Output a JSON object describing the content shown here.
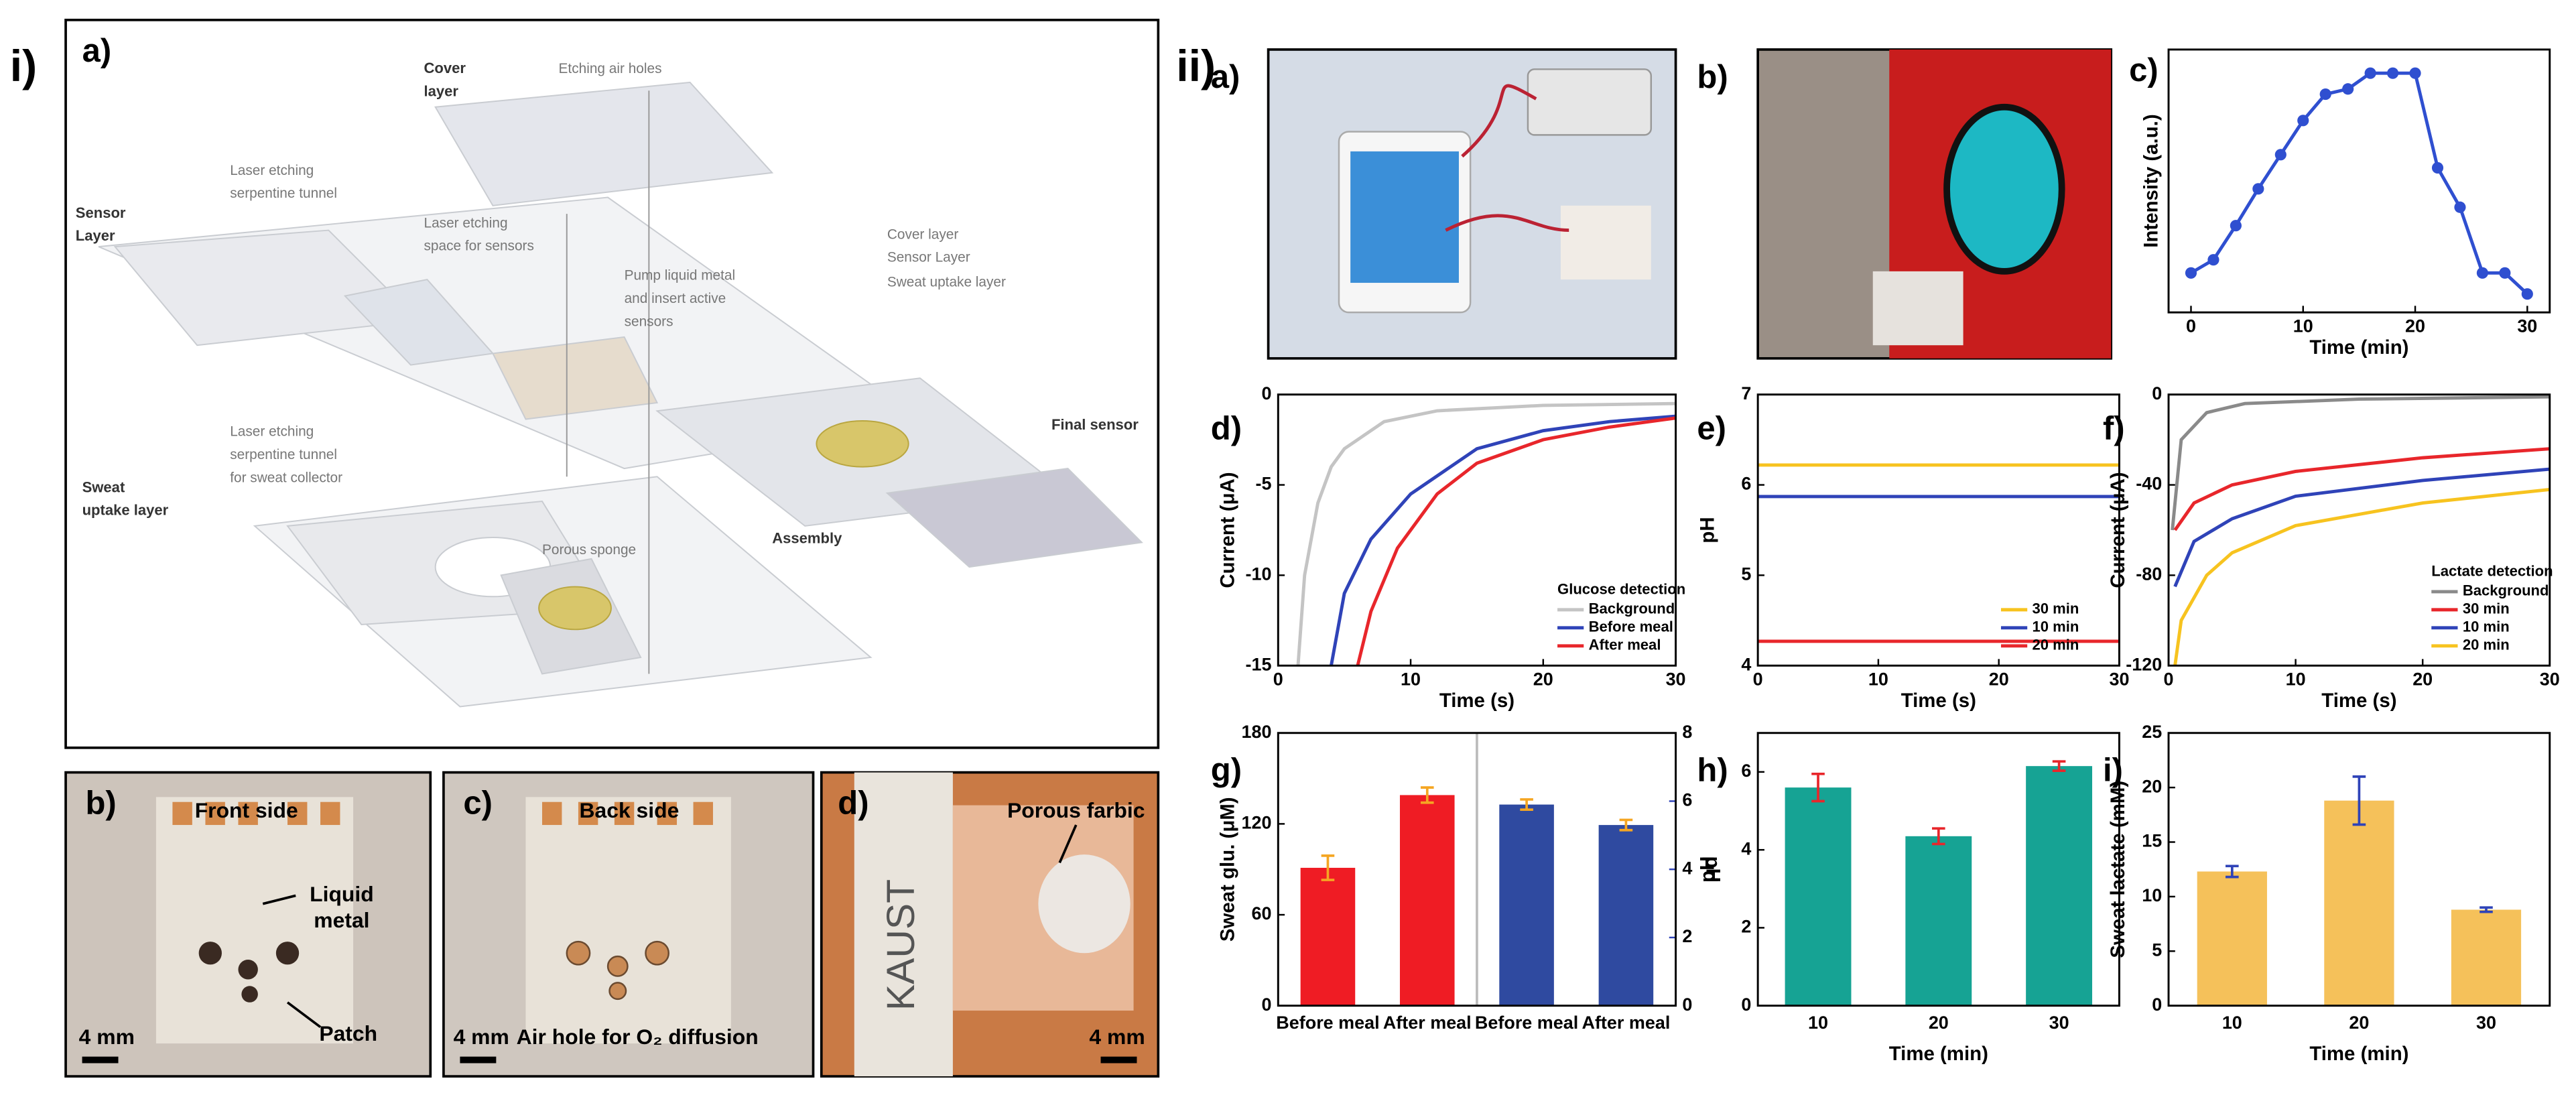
{
  "figure": {
    "label_i": "i)",
    "label_ii": "ii)",
    "panel_a": {
      "label": "a)",
      "annotations": [
        "Cover",
        "layer",
        "Etching air holes",
        "Laser etching",
        "serpentine tunnel",
        "Sensor",
        "Layer",
        "Laser etching",
        "space for sensors",
        "Pump liquid metal",
        "and insert active",
        "sensors",
        "Cover layer",
        "Sensor Layer",
        "Sweat uptake layer",
        "Final sensor",
        "Assembly",
        "Laser etching",
        "serpentine tunnel",
        "for sweat collector",
        "Sweat",
        "uptake layer",
        "Porous sponge"
      ]
    },
    "panel_b": {
      "label": "b)",
      "title": "Front side",
      "notes": [
        "Liquid",
        "metal",
        "Patch"
      ],
      "scale": "4 mm"
    },
    "panel_c": {
      "label": "c)",
      "title": "Back side",
      "notes": [
        "Air hole for O₂ diffusion"
      ],
      "scale": "4 mm"
    },
    "panel_d": {
      "label": "d)",
      "title": "Porous farbic",
      "notes": [
        "KAUST"
      ],
      "scale": "4 mm"
    },
    "panel_ii_a": {
      "label": "a)"
    },
    "panel_ii_b": {
      "label": "b)"
    }
  },
  "chart_data": [
    {
      "type": "line",
      "panel": "c)",
      "x_label": "Time (min)",
      "y_label": "Intensity (a.u.)",
      "xlim": [
        -2,
        32
      ],
      "xticks": [
        0,
        10,
        20,
        30
      ],
      "ylim": [
        -0.05,
        0.95
      ],
      "markers": true,
      "series": [
        {
          "color": "#2f4fd0",
          "x": [
            0,
            2,
            4,
            6,
            8,
            10,
            12,
            14,
            16,
            18,
            20,
            22,
            24,
            26,
            28,
            30
          ],
          "values": [
            0.1,
            0.15,
            0.28,
            0.42,
            0.55,
            0.68,
            0.78,
            0.8,
            0.86,
            0.86,
            0.86,
            0.5,
            0.35,
            0.1,
            0.1,
            0.02
          ]
        }
      ]
    },
    {
      "type": "line",
      "panel": "d)",
      "x_label": "Time (s)",
      "y_label": "Current (μA)",
      "xlim": [
        0,
        30
      ],
      "xticks": [
        0,
        10,
        20,
        30
      ],
      "ylim": [
        -15,
        0
      ],
      "yticks": [
        -15,
        -10,
        -5,
        0
      ],
      "legend_title": "Glucose detection",
      "series": [
        {
          "name": "Background",
          "color": "#c4c4c4",
          "x": [
            1.5,
            2,
            3,
            4,
            5,
            8,
            12,
            20,
            30
          ],
          "values": [
            -15,
            -10,
            -6,
            -4,
            -3,
            -1.5,
            -0.9,
            -0.6,
            -0.5
          ]
        },
        {
          "name": "Before meal",
          "color": "#2f43b8",
          "x": [
            4,
            5,
            7,
            10,
            15,
            20,
            25,
            30
          ],
          "values": [
            -15,
            -11,
            -8,
            -5.5,
            -3,
            -2,
            -1.5,
            -1.2
          ]
        },
        {
          "name": "After meal",
          "color": "#e8262b",
          "x": [
            6,
            7,
            9,
            12,
            15,
            20,
            25,
            30
          ],
          "values": [
            -15,
            -12,
            -8.5,
            -5.5,
            -3.8,
            -2.5,
            -1.8,
            -1.3
          ]
        }
      ]
    },
    {
      "type": "line",
      "panel": "e)",
      "x_label": "Time (s)",
      "y_label": "pH",
      "xlim": [
        0,
        30
      ],
      "xticks": [
        0,
        10,
        20,
        30
      ],
      "ylim": [
        4,
        7
      ],
      "yticks": [
        4,
        5,
        6,
        7
      ],
      "series": [
        {
          "name": "30 min",
          "color": "#f7c31f",
          "x": [
            0,
            30
          ],
          "values": [
            6.22,
            6.22
          ]
        },
        {
          "name": "10 min",
          "color": "#2f43b8",
          "x": [
            0,
            30
          ],
          "values": [
            5.87,
            5.87
          ]
        },
        {
          "name": "20 min",
          "color": "#e8262b",
          "x": [
            0,
            30
          ],
          "values": [
            4.27,
            4.27
          ]
        }
      ]
    },
    {
      "type": "line",
      "panel": "f)",
      "x_label": "Time (s)",
      "y_label": "Current (μA)",
      "xlim": [
        0,
        30
      ],
      "xticks": [
        0,
        10,
        20,
        30
      ],
      "ylim": [
        -120,
        0
      ],
      "yticks": [
        -120,
        -80,
        -40,
        0
      ],
      "legend_title": "Lactate detection",
      "series": [
        {
          "name": "Background",
          "color": "#8a8a8a",
          "x": [
            0.3,
            1,
            3,
            6,
            15,
            30
          ],
          "values": [
            -60,
            -20,
            -8,
            -4,
            -2,
            -1
          ]
        },
        {
          "name": "30 min",
          "color": "#e8262b",
          "x": [
            0.5,
            2,
            5,
            10,
            20,
            30
          ],
          "values": [
            -60,
            -48,
            -40,
            -34,
            -28,
            -24
          ]
        },
        {
          "name": "10 min",
          "color": "#2f43b8",
          "x": [
            0.5,
            2,
            5,
            10,
            20,
            30
          ],
          "values": [
            -85,
            -65,
            -55,
            -45,
            -38,
            -33
          ]
        },
        {
          "name": "20 min",
          "color": "#f7c31f",
          "x": [
            0.5,
            1,
            3,
            5,
            10,
            20,
            30
          ],
          "values": [
            -120,
            -100,
            -80,
            -70,
            -58,
            -48,
            -42
          ]
        }
      ]
    },
    {
      "type": "bar",
      "panel": "g)",
      "y_label": "Sweat glu. (μM)",
      "y2_label": "pH",
      "y_label_color": "#e8262b",
      "y2_label_color": "#2f43b8",
      "categories": [
        "Before meal",
        "After meal",
        "Before meal",
        "After meal"
      ],
      "ylim": [
        0,
        180
      ],
      "yticks": [
        0,
        60,
        120,
        180
      ],
      "y2lim": [
        0,
        8
      ],
      "y2ticks": [
        0,
        2,
        4,
        6,
        8
      ],
      "series": [
        {
          "color": "#ef1c24",
          "error_color": "#f5a623",
          "values": [
            91,
            139,
            null,
            null
          ],
          "errors": [
            8,
            5,
            null,
            null
          ]
        },
        {
          "color": "#2f4aa0",
          "error_color": "#f5a623",
          "axis": "y2",
          "values": [
            null,
            null,
            5.9,
            5.3
          ],
          "errors": [
            null,
            null,
            0.15,
            0.15
          ]
        }
      ]
    },
    {
      "type": "bar",
      "panel": "h)",
      "x_label": "Time (min)",
      "y_label": "pH",
      "categories": [
        "10",
        "20",
        "30"
      ],
      "ylim": [
        0,
        7
      ],
      "yticks": [
        0,
        2,
        4,
        6
      ],
      "series": [
        {
          "color": "#16a394",
          "error_color": "#e8262b",
          "values": [
            5.6,
            4.35,
            6.15
          ],
          "errors": [
            0.35,
            0.2,
            0.12
          ]
        }
      ]
    },
    {
      "type": "bar",
      "panel": "i)",
      "x_label": "Time (min)",
      "y_label": "Sweat lactate (mM)",
      "categories": [
        "10",
        "20",
        "30"
      ],
      "ylim": [
        0,
        25
      ],
      "yticks": [
        0,
        5,
        10,
        15,
        20,
        25
      ],
      "series": [
        {
          "color": "#f5c15a",
          "error_color": "#2f43b8",
          "values": [
            12.3,
            18.8,
            8.8
          ],
          "errors": [
            0.5,
            2.2,
            0.2
          ]
        }
      ]
    }
  ]
}
